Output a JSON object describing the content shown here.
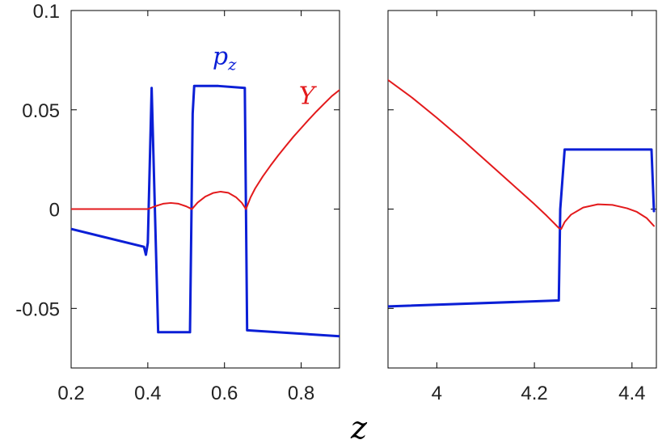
{
  "chart_data": [
    {
      "type": "line",
      "xlabel": "z",
      "ylabel": "",
      "xlim": [
        0.2,
        0.9
      ],
      "ylim": [
        -0.08,
        0.1
      ],
      "xticks": [
        "0.2",
        "0.4",
        "0.6",
        "0.8"
      ],
      "yticks": [
        "-0.05",
        "0",
        "0.05",
        "0.1"
      ],
      "grid": false,
      "series": [
        {
          "name": "p_z",
          "color": "#0b1fd6",
          "x": [
            0.2,
            0.39,
            0.395,
            0.4,
            0.41,
            0.427,
            0.51,
            0.514,
            0.517,
            0.521,
            0.584,
            0.653,
            0.659,
            0.9
          ],
          "y": [
            -0.01,
            -0.019,
            -0.023,
            -0.017,
            0.061,
            -0.062,
            -0.062,
            0.0,
            0.048,
            0.062,
            0.062,
            0.061,
            -0.061,
            -0.064
          ]
        },
        {
          "name": "Y",
          "color": "#e31a1c",
          "x": [
            0.2,
            0.24,
            0.28,
            0.32,
            0.36,
            0.4,
            0.42,
            0.44,
            0.46,
            0.48,
            0.5,
            0.515,
            0.53,
            0.55,
            0.57,
            0.59,
            0.61,
            0.63,
            0.645,
            0.656,
            0.668,
            0.68,
            0.7,
            0.72,
            0.74,
            0.76,
            0.78,
            0.8,
            0.82,
            0.84,
            0.86,
            0.88,
            0.9
          ],
          "y": [
            0,
            0,
            0,
            0,
            0,
            0,
            0.0015,
            0.0027,
            0.0031,
            0.0027,
            0.0014,
            0,
            0.0033,
            0.0063,
            0.0081,
            0.0088,
            0.0082,
            0.006,
            0.0032,
            0,
            0.0059,
            0.0104,
            0.0165,
            0.0219,
            0.027,
            0.0318,
            0.0365,
            0.0408,
            0.0451,
            0.0492,
            0.0531,
            0.0569,
            0.06
          ]
        }
      ],
      "annotations": [
        {
          "text": "p",
          "subscript": "z",
          "x": 0.6,
          "y": 0.073,
          "color": "#0b1fd6"
        },
        {
          "text": "Y",
          "x": 0.815,
          "y": 0.053,
          "color": "#e31a1c"
        }
      ]
    },
    {
      "type": "line",
      "xlabel": "",
      "ylabel": "",
      "xlim": [
        3.9,
        4.45
      ],
      "ylim": [
        -0.08,
        0.1
      ],
      "xticks": [
        "4",
        "4.2",
        "4.4"
      ],
      "yticks": [
        "",
        "",
        "",
        ""
      ],
      "grid": false,
      "series": [
        {
          "name": "p_z",
          "color": "#0b1fd6",
          "x": [
            3.9,
            4.25,
            4.253,
            4.262,
            4.44,
            4.445
          ],
          "y": [
            -0.049,
            -0.046,
            0.0,
            0.03,
            0.03,
            -0.001
          ]
        },
        {
          "name": "Y",
          "color": "#e31a1c",
          "x": [
            3.9,
            3.95,
            4.0,
            4.05,
            4.1,
            4.15,
            4.2,
            4.225,
            4.24,
            4.25,
            4.255,
            4.262,
            4.275,
            4.3,
            4.33,
            4.36,
            4.39,
            4.41,
            4.43,
            4.445
          ],
          "y": [
            0.065,
            0.056,
            0.046,
            0.0355,
            0.0245,
            0.0135,
            0.0025,
            -0.0033,
            -0.007,
            -0.0095,
            -0.01,
            -0.0065,
            -0.0028,
            0.0008,
            0.0024,
            0.0021,
            0.0004,
            -0.0014,
            -0.0045,
            -0.0085
          ]
        }
      ]
    }
  ]
}
